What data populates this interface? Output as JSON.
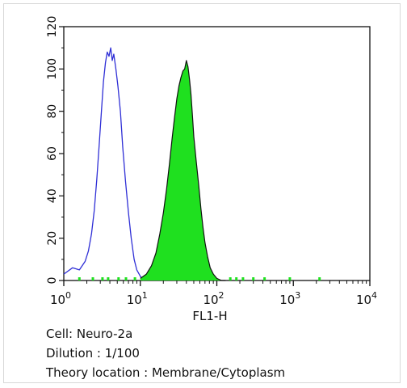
{
  "chart_data": {
    "type": "area",
    "xlabel": "FL1-H",
    "ylabel": "",
    "x_scale": "log",
    "xlim": [
      1,
      10000
    ],
    "ylim": [
      0,
      120
    ],
    "y_ticks": [
      0,
      20,
      40,
      60,
      80,
      100,
      120
    ],
    "x_tick_labels": [
      {
        "base": "10",
        "exp": "0"
      },
      {
        "base": "10",
        "exp": "1"
      },
      {
        "base": "10",
        "exp": "2"
      },
      {
        "base": "10",
        "exp": "3"
      },
      {
        "base": "10",
        "exp": "4"
      }
    ],
    "series": [
      {
        "style": "outline",
        "color": "#2f2fd6",
        "x": [
          1.0,
          1.3,
          1.6,
          1.9,
          2.1,
          2.3,
          2.5,
          2.7,
          2.9,
          3.1,
          3.3,
          3.5,
          3.7,
          3.9,
          4.1,
          4.3,
          4.5,
          4.8,
          5.1,
          5.5,
          5.9,
          6.4,
          7.0,
          7.6,
          8.3,
          9.0,
          10.0,
          11.0
        ],
        "values": [
          3,
          6,
          5,
          9,
          14,
          22,
          33,
          48,
          64,
          80,
          94,
          103,
          108,
          106,
          110,
          104,
          107,
          100,
          92,
          80,
          63,
          47,
          32,
          20,
          10,
          5,
          2,
          0
        ]
      },
      {
        "style": "filled",
        "color": "#1fe01f",
        "edge_color": "#111111",
        "x": [
          10,
          12,
          14,
          16,
          18,
          20,
          22,
          24,
          26,
          28,
          30,
          32,
          34,
          36,
          38,
          40,
          42,
          44,
          46,
          48,
          50,
          54,
          58,
          62,
          66,
          70,
          76,
          82,
          90,
          100,
          115,
          130
        ],
        "values": [
          1,
          3,
          7,
          13,
          22,
          32,
          43,
          55,
          67,
          77,
          86,
          92,
          96,
          99,
          100,
          104,
          101,
          95,
          88,
          78,
          68,
          56,
          45,
          34,
          25,
          18,
          11,
          6,
          3,
          1,
          0,
          0
        ]
      }
    ]
  },
  "captions": {
    "cell": "Cell: Neuro-2a",
    "dilution": "Dilution : 1/100",
    "location": "Theory location : Membrane/Cytoplasm"
  }
}
